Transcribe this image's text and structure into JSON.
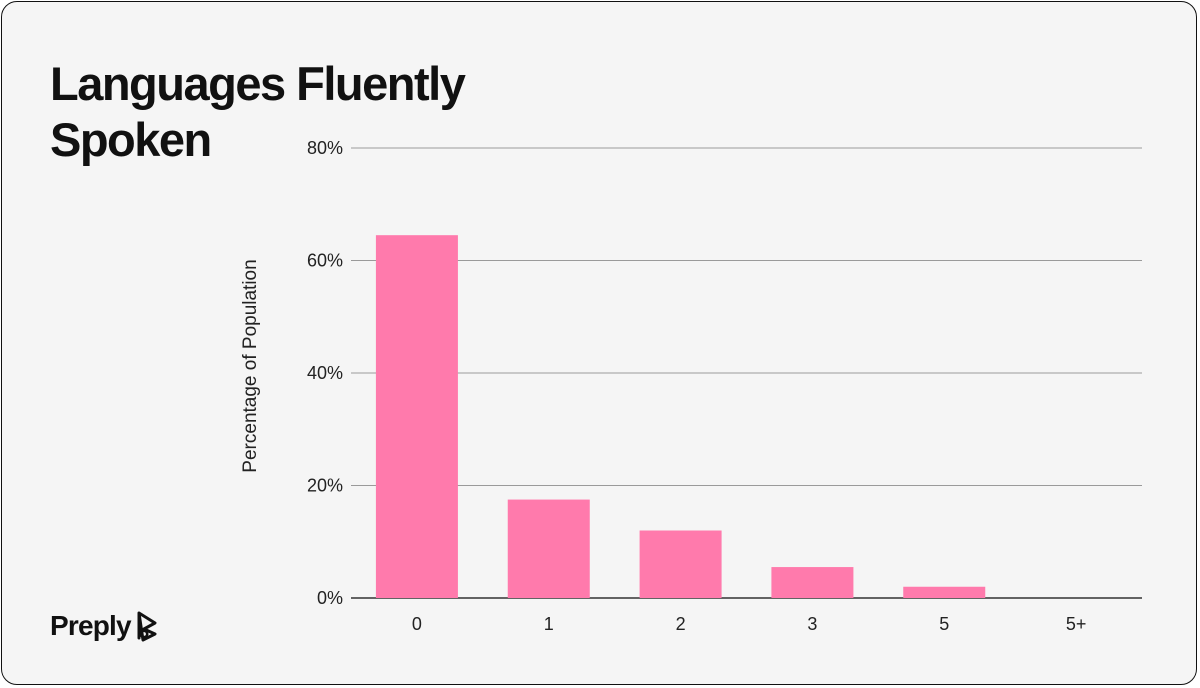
{
  "title": "Languages Fluently Spoken",
  "brand": {
    "name": "Preply",
    "icon": "preply-logo-icon"
  },
  "colors": {
    "background": "#f5f5f5",
    "bar": "#ff7aac",
    "grid": "#9a9a9a",
    "text": "#111111"
  },
  "chart_data": {
    "type": "bar",
    "title": "Languages Fluently Spoken",
    "xlabel": "",
    "ylabel": "Percentage of Population",
    "categories": [
      "0",
      "1",
      "2",
      "3",
      "5",
      "5+"
    ],
    "values": [
      64.5,
      17.5,
      12,
      5.5,
      2,
      0
    ],
    "ylim": [
      0,
      80
    ],
    "yticks": [
      0,
      20,
      40,
      60,
      80
    ],
    "ytick_labels": [
      "0%",
      "20%",
      "40%",
      "60%",
      "80%"
    ],
    "grid": true,
    "legend": "none"
  }
}
